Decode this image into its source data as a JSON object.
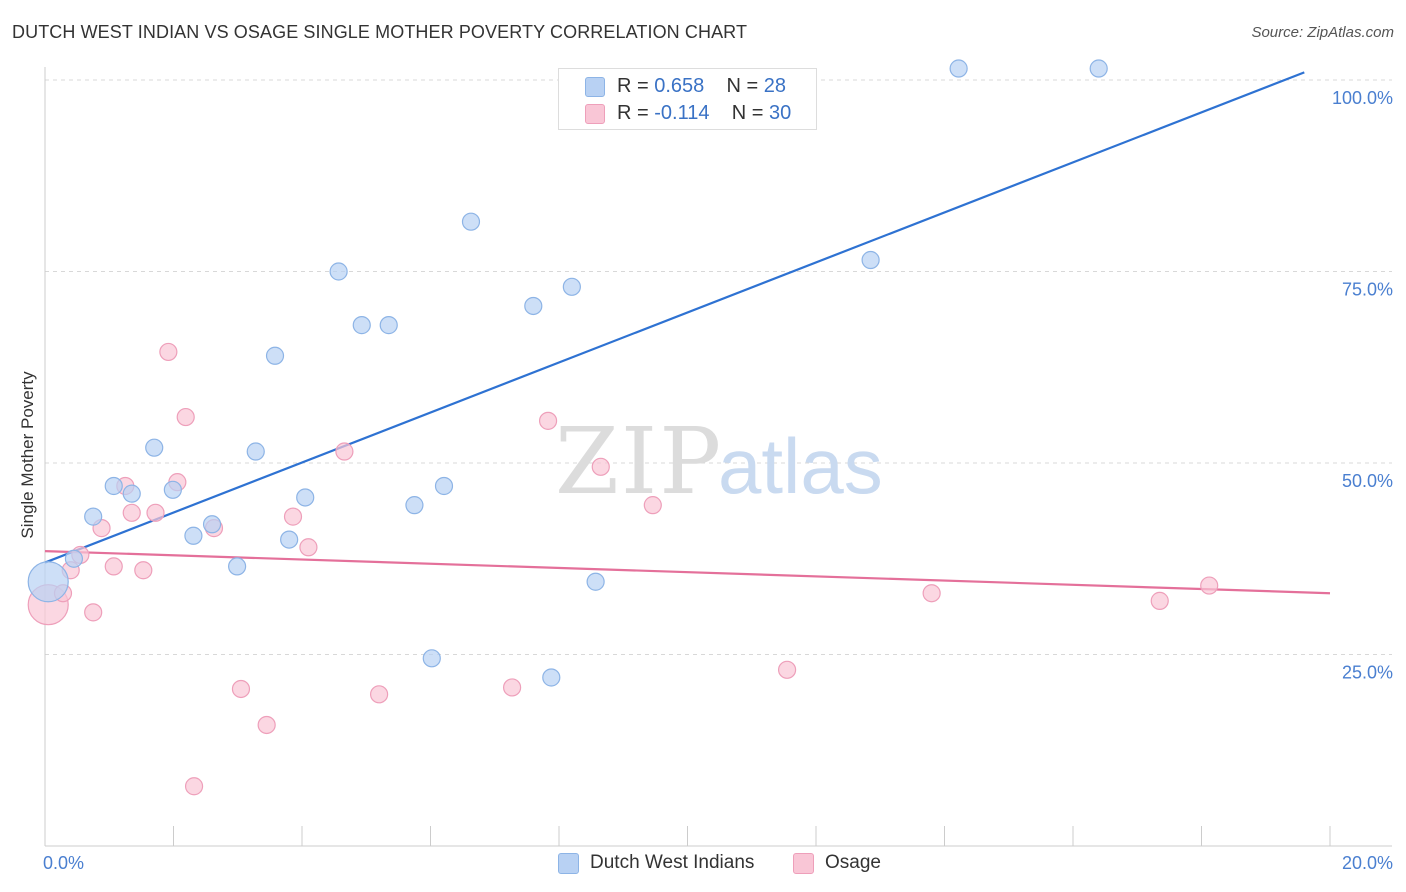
{
  "title": "DUTCH WEST INDIAN VS OSAGE SINGLE MOTHER POVERTY CORRELATION CHART",
  "source": "Source: ZipAtlas.com",
  "watermark": {
    "zip": "ZIP",
    "atlas": "atlas"
  },
  "legend_top": {
    "rows": [
      {
        "r_label": "R = ",
        "r_value": "0.658",
        "n_label": "N = ",
        "n_value": "28"
      },
      {
        "r_label": "R = ",
        "r_value": "-0.114",
        "n_label": "N = ",
        "n_value": "30"
      }
    ]
  },
  "legend_bottom": {
    "items": [
      "Dutch West Indians",
      "Osage"
    ]
  },
  "colors": {
    "blue_fill": "#b8d1f3",
    "blue_stroke": "#8db4e6",
    "blue_line": "#2e72d2",
    "pink_fill": "#f9c6d6",
    "pink_stroke": "#ee9fba",
    "pink_line": "#e4709a",
    "tick_label": "#4a7fd0",
    "grid": "#d8d8d8"
  },
  "chart_data": {
    "type": "scatter",
    "title": "DUTCH WEST INDIAN VS OSAGE SINGLE MOTHER POVERTY CORRELATION CHART",
    "xlabel": "",
    "ylabel": "Single Mother Poverty",
    "xlim": [
      0,
      20
    ],
    "ylim": [
      0,
      102
    ],
    "x_tick_labels": [
      "0.0%",
      "20.0%"
    ],
    "y_ticks": [
      25,
      50,
      75,
      100
    ],
    "y_tick_labels": [
      "25.0%",
      "50.0%",
      "75.0%",
      "100.0%"
    ],
    "grid": true,
    "series": [
      {
        "name": "Dutch West Indians",
        "R": 0.658,
        "N": 28,
        "trend": {
          "x": [
            0,
            19.6
          ],
          "y": [
            37.0,
            101.0
          ]
        },
        "points": [
          {
            "x": 0.05,
            "y": 34.5,
            "big": true
          },
          {
            "x": 0.45,
            "y": 37.5
          },
          {
            "x": 0.75,
            "y": 43.0
          },
          {
            "x": 1.07,
            "y": 47.0
          },
          {
            "x": 1.35,
            "y": 46.0
          },
          {
            "x": 1.7,
            "y": 52.0
          },
          {
            "x": 1.99,
            "y": 46.5
          },
          {
            "x": 2.31,
            "y": 40.5
          },
          {
            "x": 2.6,
            "y": 42.0
          },
          {
            "x": 2.99,
            "y": 36.5
          },
          {
            "x": 3.28,
            "y": 51.5
          },
          {
            "x": 3.58,
            "y": 64.0
          },
          {
            "x": 3.8,
            "y": 40.0
          },
          {
            "x": 4.05,
            "y": 45.5
          },
          {
            "x": 4.57,
            "y": 75.0
          },
          {
            "x": 4.93,
            "y": 68.0
          },
          {
            "x": 5.35,
            "y": 68.0
          },
          {
            "x": 5.75,
            "y": 44.5
          },
          {
            "x": 6.02,
            "y": 24.5
          },
          {
            "x": 6.21,
            "y": 47.0
          },
          {
            "x": 6.63,
            "y": 81.5
          },
          {
            "x": 7.6,
            "y": 70.5
          },
          {
            "x": 7.88,
            "y": 22.0
          },
          {
            "x": 8.2,
            "y": 73.0
          },
          {
            "x": 8.57,
            "y": 34.5
          },
          {
            "x": 12.85,
            "y": 76.5
          },
          {
            "x": 14.22,
            "y": 101.5
          },
          {
            "x": 16.4,
            "y": 101.5
          }
        ]
      },
      {
        "name": "Osage",
        "R": -0.114,
        "N": 30,
        "trend": {
          "x": [
            0,
            20
          ],
          "y": [
            38.5,
            33.0
          ]
        },
        "points": [
          {
            "x": 0.05,
            "y": 31.5,
            "big": true
          },
          {
            "x": 0.28,
            "y": 33.0
          },
          {
            "x": 0.4,
            "y": 36.0
          },
          {
            "x": 0.55,
            "y": 38.0
          },
          {
            "x": 0.75,
            "y": 30.5
          },
          {
            "x": 0.88,
            "y": 41.5
          },
          {
            "x": 1.07,
            "y": 36.5
          },
          {
            "x": 1.25,
            "y": 47.0
          },
          {
            "x": 1.35,
            "y": 43.5
          },
          {
            "x": 1.53,
            "y": 36.0
          },
          {
            "x": 1.72,
            "y": 43.5
          },
          {
            "x": 1.92,
            "y": 64.5
          },
          {
            "x": 2.06,
            "y": 47.5
          },
          {
            "x": 2.19,
            "y": 56.0
          },
          {
            "x": 2.32,
            "y": 7.8
          },
          {
            "x": 2.63,
            "y": 41.5
          },
          {
            "x": 3.05,
            "y": 20.5
          },
          {
            "x": 3.45,
            "y": 15.8
          },
          {
            "x": 3.86,
            "y": 43.0
          },
          {
            "x": 4.1,
            "y": 39.0
          },
          {
            "x": 4.66,
            "y": 51.5
          },
          {
            "x": 5.2,
            "y": 19.8
          },
          {
            "x": 7.27,
            "y": 20.7
          },
          {
            "x": 7.83,
            "y": 55.5
          },
          {
            "x": 8.65,
            "y": 49.5
          },
          {
            "x": 9.46,
            "y": 44.5
          },
          {
            "x": 11.55,
            "y": 23.0
          },
          {
            "x": 13.8,
            "y": 33.0
          },
          {
            "x": 17.35,
            "y": 32.0
          },
          {
            "x": 18.12,
            "y": 34.0
          }
        ]
      }
    ]
  }
}
